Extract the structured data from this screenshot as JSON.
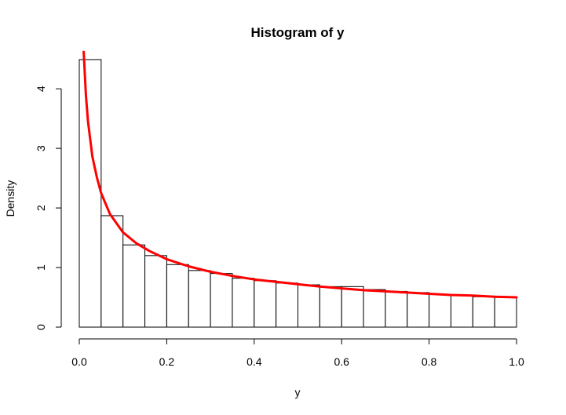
{
  "chart_data": {
    "type": "bar",
    "title": "Histogram of y",
    "xlabel": "y",
    "ylabel": "Density",
    "xlim": [
      0.0,
      1.0
    ],
    "ylim": [
      0,
      4.7
    ],
    "grid": false,
    "x_ticks": [
      "0.0",
      "0.2",
      "0.4",
      "0.6",
      "0.8",
      "1.0"
    ],
    "y_ticks": [
      "0",
      "1",
      "2",
      "3",
      "4"
    ],
    "bins": {
      "edges": [
        0.0,
        0.05,
        0.1,
        0.15,
        0.2,
        0.25,
        0.3,
        0.35,
        0.4,
        0.45,
        0.5,
        0.55,
        0.6,
        0.65,
        0.7,
        0.75,
        0.8,
        0.85,
        0.9,
        0.95,
        1.0
      ],
      "densities": [
        4.49,
        1.87,
        1.38,
        1.2,
        1.05,
        0.95,
        0.9,
        0.82,
        0.78,
        0.74,
        0.71,
        0.68,
        0.68,
        0.63,
        0.6,
        0.58,
        0.55,
        0.53,
        0.51,
        0.5
      ]
    },
    "density_curve": {
      "color": "#ff0000",
      "x": [
        0.01,
        0.015,
        0.02,
        0.03,
        0.04,
        0.05,
        0.07,
        0.1,
        0.13,
        0.16,
        0.2,
        0.25,
        0.3,
        0.35,
        0.4,
        0.45,
        0.5,
        0.55,
        0.6,
        0.65,
        0.7,
        0.75,
        0.8,
        0.85,
        0.9,
        0.95,
        1.0
      ],
      "y": [
        4.62,
        3.9,
        3.45,
        2.86,
        2.52,
        2.25,
        1.9,
        1.59,
        1.41,
        1.28,
        1.14,
        1.02,
        0.93,
        0.86,
        0.8,
        0.76,
        0.72,
        0.68,
        0.65,
        0.62,
        0.6,
        0.58,
        0.56,
        0.54,
        0.53,
        0.51,
        0.5
      ]
    },
    "bar_fill": "#ffffff",
    "bar_stroke": "#000000"
  }
}
